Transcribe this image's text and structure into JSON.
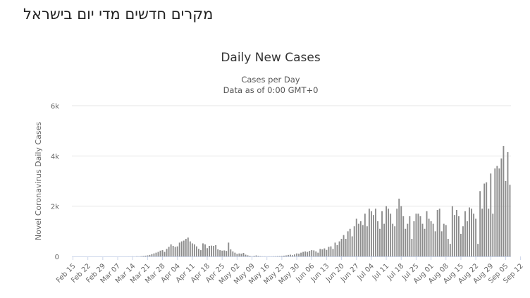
{
  "page": {
    "heading": "מקרים חדשים מדי יום בישראל"
  },
  "chart_data": {
    "type": "bar",
    "title": "Daily New Cases",
    "subtitle": "Cases per Day",
    "subtitle2": "Data as of 0:00 GMT+0",
    "ylabel": "Novel Coronavirus Daily Cases",
    "xlabel": "",
    "ylim": [
      0,
      6000
    ],
    "yticks": [
      0,
      2000,
      4000,
      6000
    ],
    "ytick_labels": [
      "0",
      "2k",
      "4k",
      "6k"
    ],
    "grid": true,
    "legend": "none",
    "bar_color": "#8c8c8c",
    "x_tick_labels": [
      "Feb 15",
      "Feb 22",
      "Feb 29",
      "Mar 07",
      "Mar 14",
      "Mar 21",
      "Mar 28",
      "Apr 04",
      "Apr 11",
      "Apr 18",
      "Apr 25",
      "May 02",
      "May 09",
      "May 16",
      "May 23",
      "May 30",
      "Jun 06",
      "Jun 13",
      "Jun 20",
      "Jun 27",
      "Jul 04",
      "Jul 11",
      "Jul 18",
      "Jul 25",
      "Aug 01",
      "Aug 08",
      "Aug 15",
      "Aug 22",
      "Aug 29",
      "Sep 05",
      "Sep 12"
    ],
    "series": [
      {
        "values": [
          0,
          0,
          0,
          0,
          0,
          0,
          0,
          0,
          0,
          0,
          0,
          0,
          0,
          0,
          0,
          0,
          0,
          0,
          0,
          0,
          0,
          0,
          0,
          0,
          0,
          0,
          1,
          0,
          5,
          0,
          8,
          4,
          12,
          20,
          30,
          40,
          60,
          90,
          120,
          150,
          180,
          230,
          250,
          180,
          300,
          380,
          480,
          420,
          380,
          400,
          550,
          600,
          630,
          700,
          750,
          600,
          520,
          480,
          400,
          300,
          250,
          520,
          480,
          330,
          420,
          430,
          420,
          450,
          280,
          250,
          230,
          240,
          220,
          550,
          280,
          200,
          150,
          100,
          120,
          110,
          140,
          70,
          45,
          25,
          10,
          25,
          40,
          20,
          10,
          5,
          5,
          3,
          5,
          5,
          8,
          10,
          15,
          15,
          20,
          30,
          40,
          60,
          70,
          50,
          80,
          120,
          110,
          150,
          180,
          200,
          180,
          220,
          250,
          240,
          200,
          150,
          300,
          280,
          320,
          260,
          380,
          400,
          300,
          550,
          450,
          600,
          700,
          850,
          700,
          1000,
          1100,
          800,
          1200,
          1500,
          1300,
          1400,
          1250,
          1700,
          1200,
          1900,
          1800,
          1650,
          1900,
          1400,
          1100,
          1800,
          1300,
          2000,
          1900,
          1700,
          1300,
          1200,
          1900,
          2300,
          2000,
          1600,
          1100,
          1300,
          1600,
          700,
          1400,
          1700,
          1700,
          1600,
          1300,
          1100,
          1800,
          1500,
          1400,
          1300,
          1000,
          1850,
          1900,
          1000,
          1300,
          1250,
          700,
          500,
          2000,
          1650,
          1850,
          1600,
          900,
          1200,
          1800,
          1400,
          1950,
          1900,
          1700,
          1500,
          500,
          2600,
          1900,
          2900,
          2950,
          1900,
          3300,
          1700,
          3500,
          3600,
          3500,
          3900,
          4400,
          3000,
          4150,
          2850
        ]
      }
    ]
  }
}
